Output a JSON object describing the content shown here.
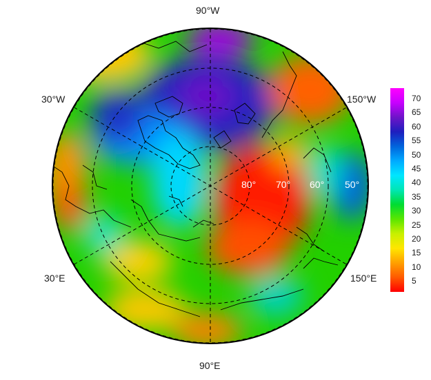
{
  "map": {
    "projection": "north-polar-stereographic",
    "longitude_labels": {
      "top": "90°W",
      "upper_left": "30°W",
      "upper_right": "150°W",
      "lower_left": "30°E",
      "lower_right": "150°E",
      "bottom": "90°E"
    },
    "latitude_labels": [
      "80°",
      "70°",
      "60°",
      "50°"
    ]
  },
  "colorbar": {
    "ticks": [
      "70",
      "65",
      "60",
      "55",
      "50",
      "45",
      "40",
      "35",
      "30",
      "25",
      "20",
      "15",
      "10",
      "5"
    ],
    "colors": [
      "#ff0000",
      "#ff5a00",
      "#ffa000",
      "#ffe600",
      "#c8f000",
      "#5ae600",
      "#00dc32",
      "#00e6b4",
      "#00e6ff",
      "#00aaff",
      "#0064dc",
      "#1e1ebe",
      "#6e14c8",
      "#c800ff",
      "#ff00ff"
    ]
  }
}
